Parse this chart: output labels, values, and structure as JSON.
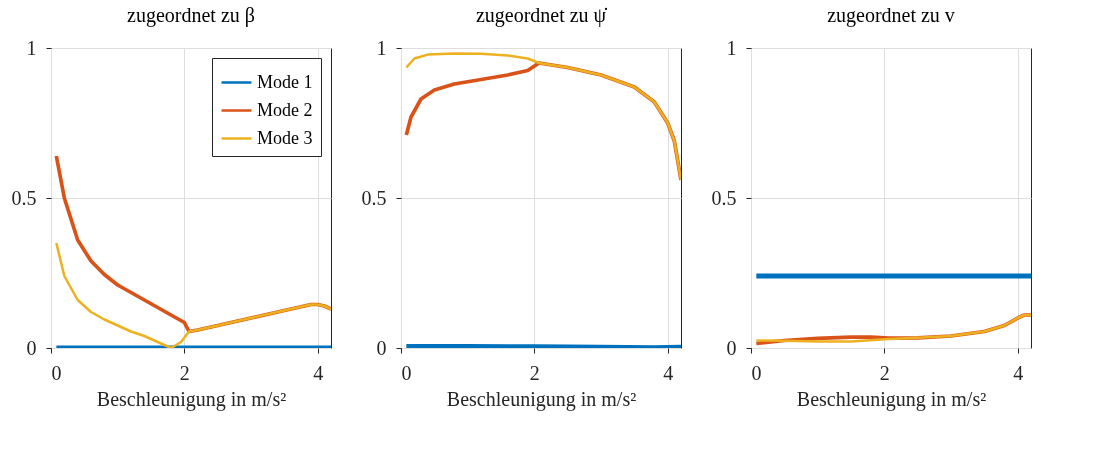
{
  "chart_data": [
    {
      "type": "line",
      "title": "zugeordnet zu β",
      "xlabel": "Beschleunigung in m/s²",
      "xlim": [
        0,
        4.2
      ],
      "xticks": [
        0,
        2,
        4
      ],
      "ylim": [
        0,
        1
      ],
      "yticks": [
        0,
        0.5,
        1
      ],
      "grid": true,
      "legend": "top right",
      "line_style": "solid",
      "series": [
        {
          "name": "Mode 1",
          "color": "#0072bd",
          "x": [
            0.08,
            1,
            2,
            3,
            4,
            4.2
          ],
          "values": [
            0,
            0,
            0,
            0,
            0,
            0
          ]
        },
        {
          "name": "Mode 2",
          "color": "#d95319",
          "x": [
            0.08,
            0.2,
            0.4,
            0.6,
            0.8,
            1.0,
            1.2,
            1.4,
            1.6,
            1.8,
            2.0,
            2.07,
            2.2,
            2.5,
            3.0,
            3.5,
            3.9,
            4.0,
            4.1,
            4.2
          ],
          "values": [
            0.64,
            0.5,
            0.36,
            0.29,
            0.245,
            0.21,
            0.185,
            0.16,
            0.135,
            0.11,
            0.085,
            0.055,
            0.06,
            0.075,
            0.1,
            0.125,
            0.145,
            0.145,
            0.14,
            0.13
          ]
        },
        {
          "name": "Mode 3",
          "color": "#edb120",
          "x": [
            0.08,
            0.2,
            0.4,
            0.6,
            0.8,
            1.0,
            1.2,
            1.4,
            1.6,
            1.8,
            1.95,
            2.07,
            2.2,
            2.5,
            3.0,
            3.5,
            3.9,
            4.0,
            4.1,
            4.2
          ],
          "values": [
            0.35,
            0.24,
            0.16,
            0.12,
            0.095,
            0.075,
            0.055,
            0.04,
            0.02,
            0.0,
            0.02,
            0.055,
            0.06,
            0.075,
            0.1,
            0.125,
            0.145,
            0.145,
            0.14,
            0.13
          ]
        }
      ]
    },
    {
      "type": "line",
      "title": "zugeordnet zu ψ̇",
      "xlabel": "Beschleunigung in m/s²",
      "xlim": [
        0,
        4.2
      ],
      "xticks": [
        0,
        2,
        4
      ],
      "ylim": [
        0,
        1
      ],
      "yticks": [
        0,
        0.5,
        1
      ],
      "grid": true,
      "line_style": "solid",
      "series": [
        {
          "color": "#0072bd",
          "x": [
            0.08,
            1,
            2,
            3,
            3.8,
            4.2
          ],
          "values": [
            0.005,
            0.005,
            0.004,
            0.003,
            0.001,
            0.003
          ]
        },
        {
          "color": "#d95319",
          "x": [
            0.08,
            0.15,
            0.3,
            0.5,
            0.8,
            1.2,
            1.6,
            1.9,
            2.07,
            2.5,
            3.0,
            3.5,
            3.8,
            4.0,
            4.1,
            4.2
          ],
          "values": [
            0.71,
            0.77,
            0.83,
            0.86,
            0.88,
            0.895,
            0.91,
            0.925,
            0.95,
            0.935,
            0.91,
            0.87,
            0.82,
            0.75,
            0.69,
            0.56
          ]
        },
        {
          "color": "#edb120",
          "x": [
            0.08,
            0.2,
            0.4,
            0.8,
            1.2,
            1.6,
            1.9,
            2.07,
            2.5,
            3.0,
            3.5,
            3.8,
            4.0,
            4.1,
            4.2
          ],
          "values": [
            0.935,
            0.965,
            0.978,
            0.982,
            0.981,
            0.975,
            0.965,
            0.95,
            0.935,
            0.91,
            0.87,
            0.82,
            0.75,
            0.69,
            0.56
          ]
        }
      ]
    },
    {
      "type": "line",
      "title": "zugeordnet zu v",
      "xlabel": "Beschleunigung in m/s²",
      "xlim": [
        0,
        4.2
      ],
      "xticks": [
        0,
        2,
        4
      ],
      "ylim": [
        0,
        1
      ],
      "yticks": [
        0,
        0.5,
        1
      ],
      "grid": true,
      "line_style": "solid",
      "series": [
        {
          "color": "#0072bd",
          "x": [
            0.08,
            1,
            2,
            3,
            4,
            4.2
          ],
          "values": [
            0.24,
            0.24,
            0.24,
            0.24,
            0.24,
            0.24
          ]
        },
        {
          "color": "#d95319",
          "x": [
            0.08,
            0.5,
            1.0,
            1.5,
            1.8,
            2.07,
            2.5,
            3.0,
            3.5,
            3.8,
            4.0,
            4.1,
            4.2
          ],
          "values": [
            0.015,
            0.025,
            0.032,
            0.036,
            0.036,
            0.033,
            0.034,
            0.04,
            0.055,
            0.075,
            0.1,
            0.11,
            0.11
          ]
        },
        {
          "color": "#edb120",
          "x": [
            0.08,
            0.5,
            1.0,
            1.5,
            2.07,
            2.5,
            3.0,
            3.5,
            3.8,
            4.0,
            4.1,
            4.2
          ],
          "values": [
            0.025,
            0.024,
            0.022,
            0.022,
            0.03,
            0.034,
            0.04,
            0.055,
            0.075,
            0.1,
            0.11,
            0.11
          ]
        }
      ]
    }
  ]
}
